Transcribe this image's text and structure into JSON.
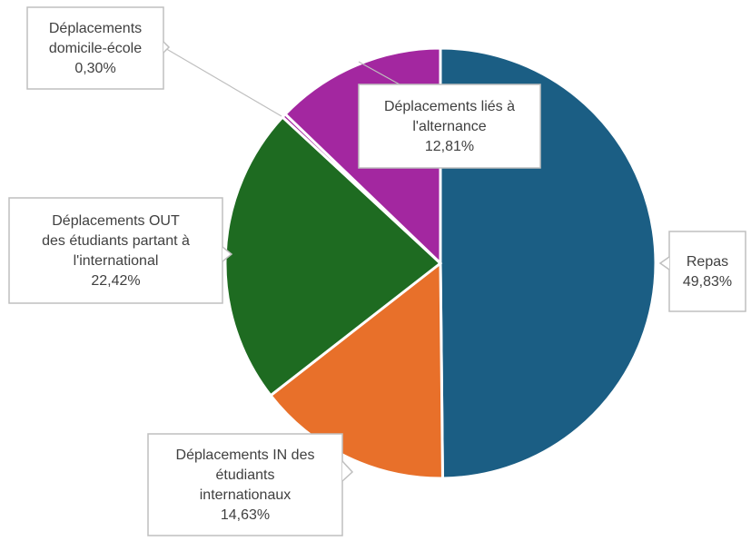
{
  "chart_data": {
    "type": "pie",
    "title": "",
    "slices": [
      {
        "label": "Repas",
        "value": 49.83,
        "display": "49,83%",
        "color": "#1b5e84",
        "label_lines": [
          "Repas"
        ]
      },
      {
        "label": "Déplacements IN des étudiants internationaux",
        "value": 14.63,
        "display": "14,63%",
        "color": "#e8702a",
        "label_lines": [
          "Déplacements IN des",
          "étudiants",
          "internationaux"
        ]
      },
      {
        "label": "Déplacements OUT des étudiants partant à l'international",
        "value": 22.42,
        "display": "22,42%",
        "color": "#1e6b21",
        "label_lines": [
          "Déplacements OUT",
          "des étudiants partant à",
          "l'international"
        ]
      },
      {
        "label": "Déplacements domicile-école",
        "value": 0.3,
        "display": "0,30%",
        "color": "#a327a0",
        "label_lines": [
          "Déplacements",
          "domicile-école"
        ]
      },
      {
        "label": "Déplacements liés à l'alternance",
        "value": 12.81,
        "display": "12,81%",
        "color": "#a327a0",
        "label_lines": [
          "Déplacements liés à",
          "l'alternance"
        ]
      }
    ],
    "legend": "none"
  }
}
